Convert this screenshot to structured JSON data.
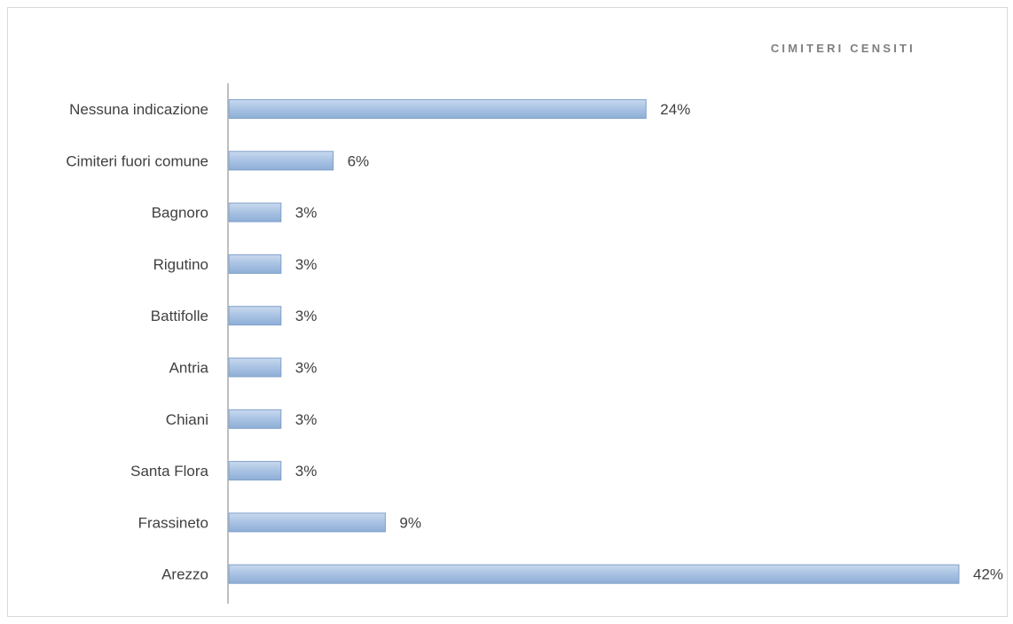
{
  "chart_data": {
    "type": "bar",
    "orientation": "horizontal",
    "title": "CIMITERI CENSITI",
    "xlabel": "",
    "ylabel": "",
    "categories": [
      "Nessuna indicazione",
      "Cimiteri fuori comune",
      "Bagnoro",
      "Rigutino",
      "Battifolle",
      "Antria",
      "Chiani",
      "Santa Flora",
      "Frassineto",
      "Arezzo"
    ],
    "values": [
      24,
      6,
      3,
      3,
      3,
      3,
      3,
      3,
      9,
      42
    ],
    "value_labels": [
      "24%",
      "6%",
      "3%",
      "3%",
      "3%",
      "3%",
      "3%",
      "3%",
      "9%",
      "42%"
    ],
    "unit": "%",
    "xlim": [
      0,
      42
    ],
    "grid": false,
    "legend": "none",
    "bar_color": "#9db9dc",
    "bar_edge_color": "#7fa0c9",
    "axis_color": "#bfbfbf",
    "title_color": "#7f7f7f",
    "label_color": "#404040"
  }
}
